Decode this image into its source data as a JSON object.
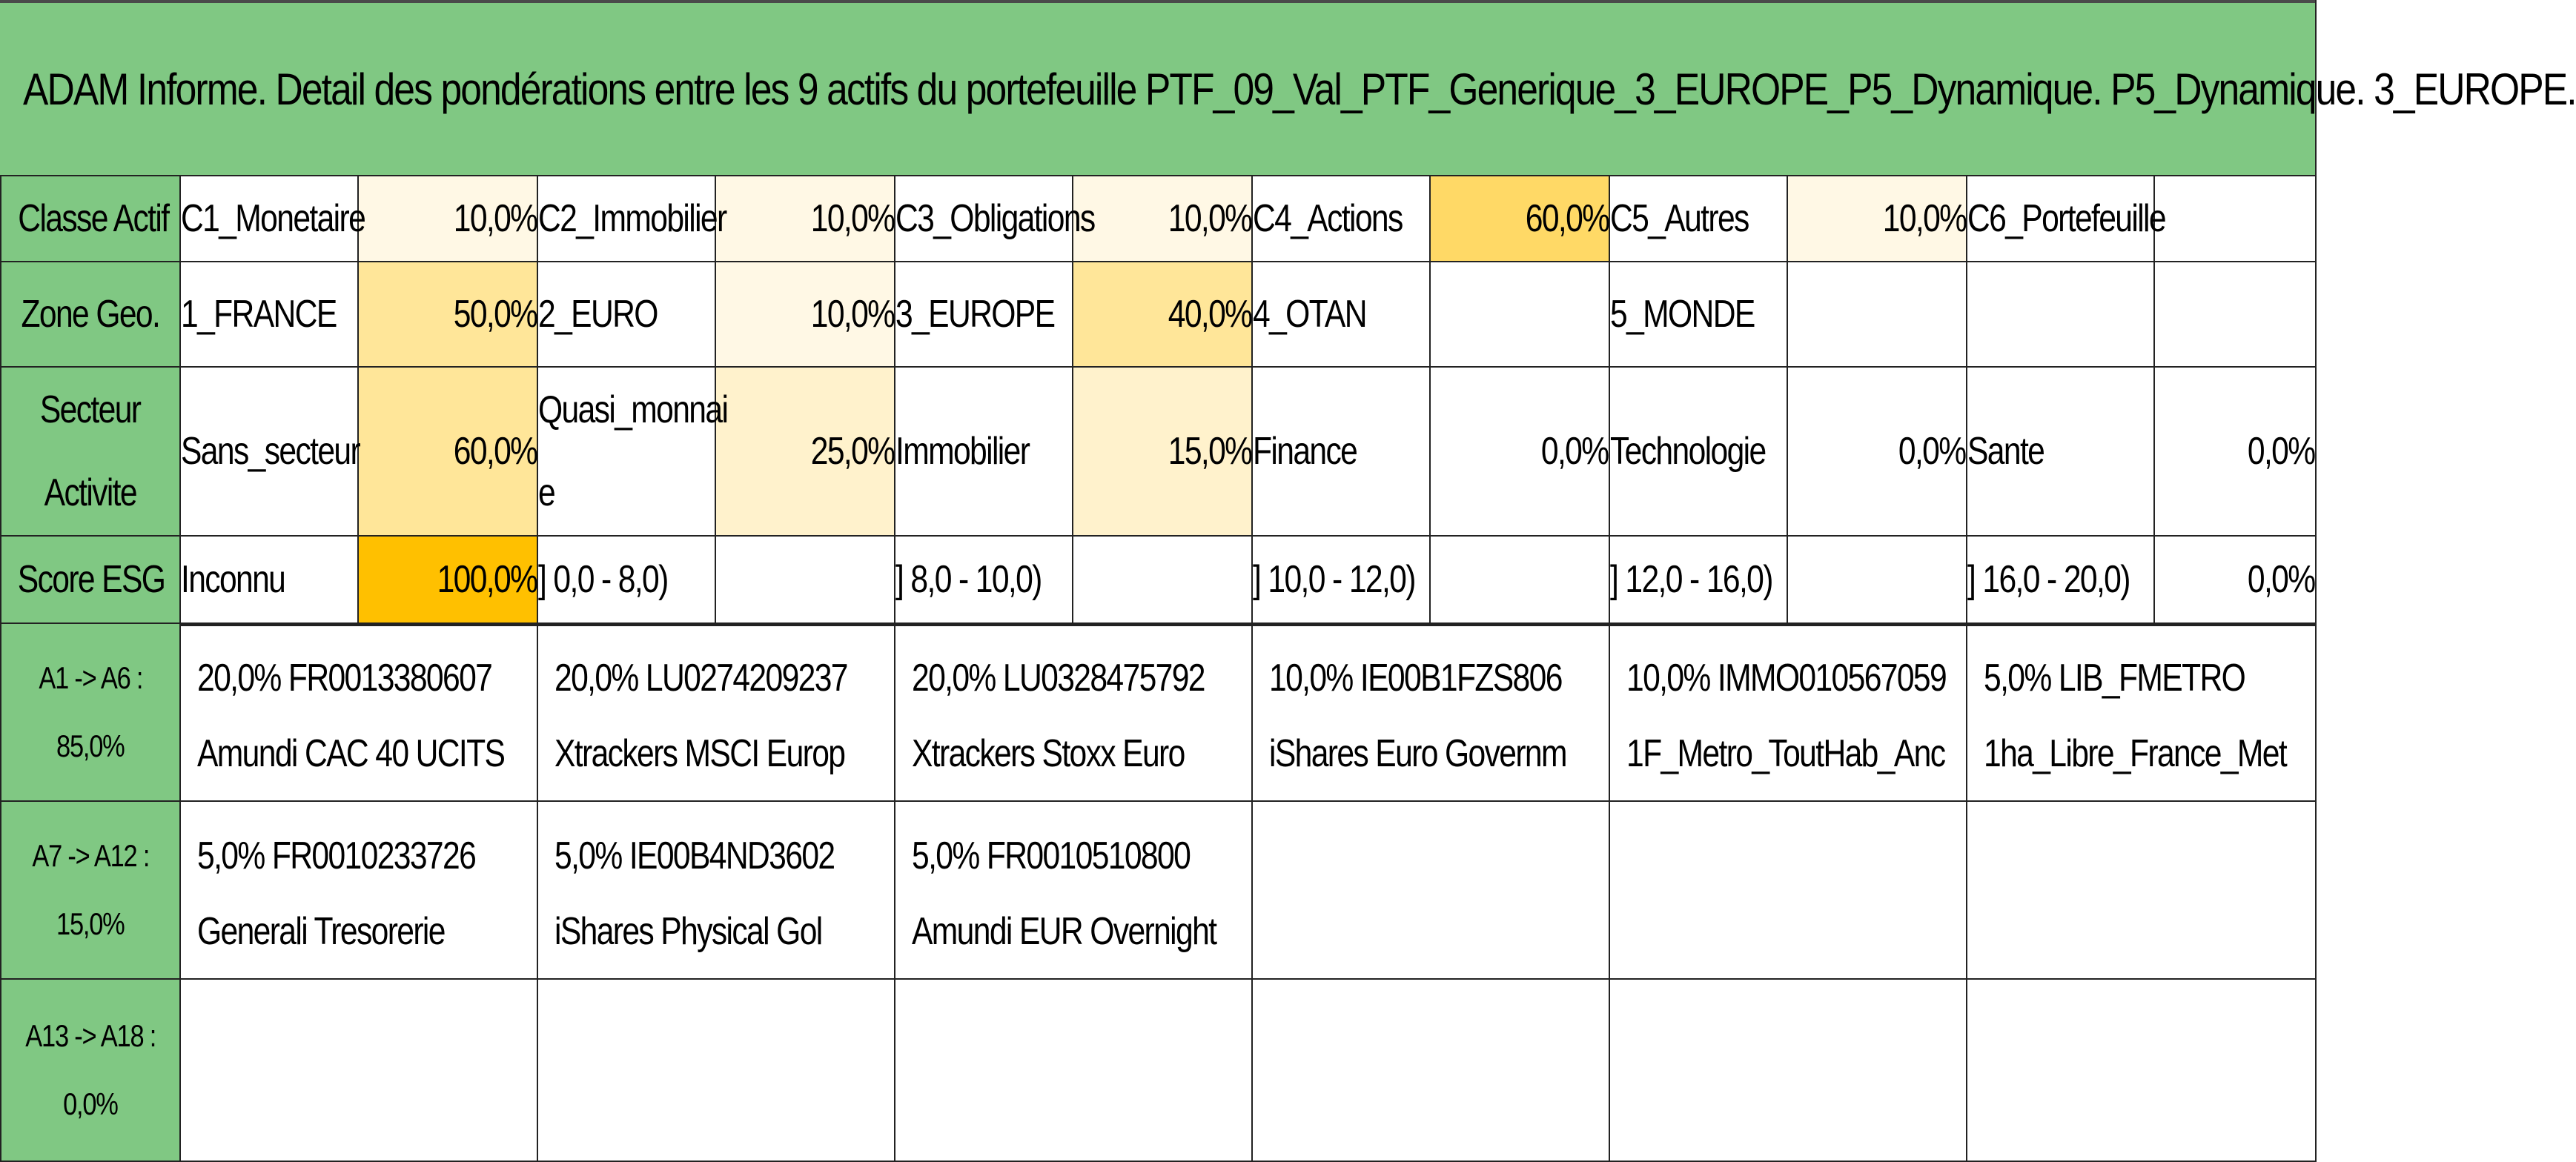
{
  "title": "ADAM Informe. Detail des pondérations entre les 9 actifs du portefeuille PTF_09_Val_PTF_Generique_3_EUROPE_P5_Dynamique. P5_Dynamique. 3_EUROPE.",
  "colors": {
    "header_green": "#80c883",
    "heat_lightest": "#fff8e5",
    "heat_light": "#fff2cc",
    "heat_mid": "#ffe699",
    "heat_strong": "#ffd966",
    "heat_strongest": "#ffc000"
  },
  "rows": {
    "classe": {
      "label": "Classe Actif",
      "cells": [
        {
          "name": "C1_Monetaire",
          "value": "10,0%"
        },
        {
          "name": "C2_Immobilier",
          "value": "10,0%"
        },
        {
          "name": "C3_Obligations",
          "value": "10,0%"
        },
        {
          "name": "C4_Actions",
          "value": "60,0%"
        },
        {
          "name": "C5_Autres",
          "value": "10,0%"
        },
        {
          "name": "C6_Portefeuille",
          "value": ""
        }
      ]
    },
    "zone": {
      "label": "Zone Geo.",
      "cells": [
        {
          "name": "1_FRANCE",
          "value": "50,0%"
        },
        {
          "name": "2_EURO",
          "value": "10,0%"
        },
        {
          "name": "3_EUROPE",
          "value": "40,0%"
        },
        {
          "name": "4_OTAN",
          "value": ""
        },
        {
          "name": "5_MONDE",
          "value": ""
        },
        {
          "name": "",
          "value": ""
        }
      ]
    },
    "secteur": {
      "label_line1": "Secteur",
      "label_line2": "Activite",
      "cells": [
        {
          "name": "Sans_secteur",
          "value": "60,0%"
        },
        {
          "name_line1": "Quasi_monnai",
          "name_line2": "e",
          "value": "25,0%"
        },
        {
          "name": "Immobilier",
          "value": "15,0%"
        },
        {
          "name": "Finance",
          "value": "0,0%"
        },
        {
          "name": "Technologie",
          "value": "0,0%"
        },
        {
          "name": "Sante",
          "value": "0,0%"
        }
      ]
    },
    "esg": {
      "label": "Score ESG",
      "cells": [
        {
          "name": "Inconnu",
          "value": "100,0%"
        },
        {
          "name": "] 0,0 - 8,0)",
          "value": ""
        },
        {
          "name": "] 8,0 - 10,0)",
          "value": ""
        },
        {
          "name": "] 10,0 - 12,0)",
          "value": ""
        },
        {
          "name": "] 12,0 - 16,0)",
          "value": ""
        },
        {
          "name": "] 16,0 - 20,0)",
          "value": "0,0%"
        }
      ]
    }
  },
  "assets": [
    {
      "label": "A1 -> A6 :",
      "pct": "85,0%",
      "items": [
        {
          "line1": "20,0% FR0013380607",
          "line2": "Amundi CAC 40 UCITS"
        },
        {
          "line1": "20,0% LU0274209237",
          "line2": "Xtrackers MSCI Europ"
        },
        {
          "line1": "20,0% LU0328475792",
          "line2": "Xtrackers Stoxx Euro"
        },
        {
          "line1": "10,0% IE00B1FZS806",
          "line2": "iShares Euro Governm"
        },
        {
          "line1": "10,0% IMMO010567059",
          "line2": "1F_Metro_ToutHab_Anc"
        },
        {
          "line1": "5,0% LIB_FMETRO",
          "line2": "1ha_Libre_France_Met"
        }
      ]
    },
    {
      "label": "A7 -> A12 :",
      "pct": "15,0%",
      "items": [
        {
          "line1": "5,0% FR0010233726",
          "line2": "Generali Tresorerie"
        },
        {
          "line1": "5,0% IE00B4ND3602",
          "line2": "iShares Physical Gol"
        },
        {
          "line1": "5,0% FR0010510800",
          "line2": "Amundi EUR Overnight"
        }
      ]
    },
    {
      "label": "A13 -> A18 :",
      "pct": "0,0%",
      "items": []
    }
  ]
}
